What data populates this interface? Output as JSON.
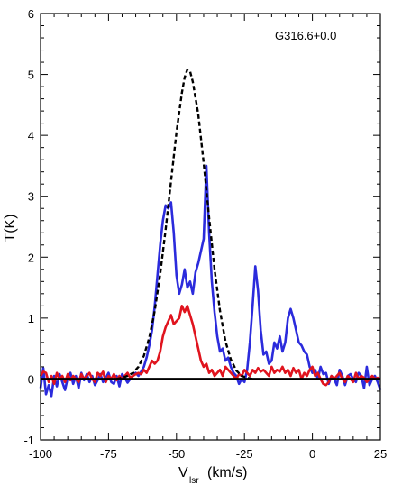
{
  "chart_data": {
    "type": "line",
    "annotation": "G316.6+0.0",
    "xlabel_main": "V",
    "xlabel_sub": "lsr",
    "xlabel_unit": "(km/s)",
    "ylabel": "T(K)",
    "xlim": [
      -100,
      25
    ],
    "ylim": [
      -1,
      6
    ],
    "xticks": [
      -100,
      -75,
      -50,
      -25,
      0,
      25
    ],
    "xtick_labels": [
      "-100",
      "-75",
      "-50",
      "-25",
      "0",
      "25"
    ],
    "yticks": [
      -1,
      0,
      1,
      2,
      3,
      4,
      5,
      6
    ],
    "ytick_labels": [
      "-1",
      "0",
      "1",
      "2",
      "3",
      "4",
      "5",
      "6"
    ],
    "grid": false,
    "series": [
      {
        "color": "#2b2bdc",
        "style": "solid",
        "x": [
          -100,
          -99,
          -98,
          -97,
          -96,
          -95,
          -94,
          -93,
          -92,
          -91,
          -90,
          -89,
          -88,
          -87,
          -86,
          -85,
          -84,
          -83,
          -82,
          -81,
          -80,
          -79,
          -78,
          -77,
          -76,
          -75,
          -74,
          -73,
          -72,
          -71,
          -70,
          -69,
          -68,
          -67,
          -66,
          -65,
          -64,
          -63,
          -62,
          -61,
          -60,
          -59,
          -58,
          -57,
          -56,
          -55,
          -54,
          -53,
          -52,
          -51,
          -50,
          -49,
          -48,
          -47,
          -46,
          -45,
          -44,
          -43,
          -42,
          -41,
          -40,
          -39,
          -38,
          -37,
          -36,
          -35,
          -34,
          -33,
          -32,
          -31,
          -30,
          -29,
          -28,
          -27,
          -26,
          -25,
          -24,
          -23,
          -22,
          -21,
          -20,
          -19,
          -18,
          -17,
          -16,
          -15,
          -14,
          -13,
          -12,
          -11,
          -10,
          -9,
          -8,
          -7,
          -6,
          -5,
          -4,
          -3,
          -2,
          -1,
          0,
          1,
          2,
          3,
          4,
          5,
          6,
          7,
          8,
          9,
          10,
          11,
          12,
          13,
          14,
          15,
          16,
          17,
          18,
          19,
          20,
          21,
          22,
          23,
          24,
          25
        ],
        "y": [
          -0.15,
          0.18,
          -0.25,
          -0.1,
          -0.28,
          0.05,
          -0.12,
          0.08,
          -0.05,
          -0.18,
          0.02,
          0.1,
          -0.08,
          0.05,
          -0.15,
          0.1,
          -0.02,
          0.08,
          -0.05,
          0.05,
          -0.1,
          -0.02,
          0.08,
          -0.05,
          0.02,
          0.1,
          -0.05,
          -0.08,
          0.05,
          -0.12,
          0.08,
          0.02,
          -0.06,
          0.0,
          0.05,
          0.1,
          0.05,
          0.12,
          0.2,
          0.35,
          0.55,
          0.8,
          1.2,
          1.7,
          2.2,
          2.6,
          2.85,
          2.8,
          2.9,
          2.4,
          1.7,
          1.4,
          1.55,
          1.8,
          1.5,
          1.6,
          1.4,
          1.75,
          1.9,
          2.1,
          2.3,
          3.5,
          2.4,
          1.6,
          1.1,
          0.7,
          0.45,
          0.5,
          0.3,
          0.35,
          0.2,
          0.1,
          0.05,
          -0.08,
          0.0,
          -0.05,
          0.15,
          0.6,
          1.2,
          1.85,
          1.45,
          0.8,
          0.4,
          0.45,
          0.25,
          0.3,
          0.6,
          0.5,
          0.7,
          0.45,
          0.6,
          1.0,
          1.15,
          1.0,
          0.8,
          0.6,
          0.55,
          0.45,
          0.4,
          0.2,
          0.1,
          0.15,
          0.0,
          0.2,
          0.08,
          0.1,
          -0.08,
          0.05,
          0.0,
          -0.1,
          0.15,
          0.05,
          -0.1,
          0.05,
          0.08,
          0.0,
          -0.05,
          0.1,
          0.05,
          -0.15,
          0.2,
          -0.1,
          0.0,
          0.05,
          -0.05,
          -0.18
        ]
      },
      {
        "color": "#e0141e",
        "style": "solid",
        "x": [
          -100,
          -99,
          -98,
          -97,
          -96,
          -95,
          -94,
          -93,
          -92,
          -91,
          -90,
          -89,
          -88,
          -87,
          -86,
          -85,
          -84,
          -83,
          -82,
          -81,
          -80,
          -79,
          -78,
          -77,
          -76,
          -75,
          -74,
          -73,
          -72,
          -71,
          -70,
          -69,
          -68,
          -67,
          -66,
          -65,
          -64,
          -63,
          -62,
          -61,
          -60,
          -59,
          -58,
          -57,
          -56,
          -55,
          -54,
          -53,
          -52,
          -51,
          -50,
          -49,
          -48,
          -47,
          -46,
          -45,
          -44,
          -43,
          -42,
          -41,
          -40,
          -39,
          -38,
          -37,
          -36,
          -35,
          -34,
          -33,
          -32,
          -31,
          -30,
          -29,
          -28,
          -27,
          -26,
          -25,
          -24,
          -23,
          -22,
          -21,
          -20,
          -19,
          -18,
          -17,
          -16,
          -15,
          -14,
          -13,
          -12,
          -11,
          -10,
          -9,
          -8,
          -7,
          -6,
          -5,
          -4,
          -3,
          -2,
          -1,
          0,
          1,
          2,
          3,
          4,
          5,
          6,
          7,
          8,
          9,
          10,
          11,
          12,
          13,
          14,
          15,
          16,
          17,
          18,
          19,
          20,
          21,
          22,
          23,
          24,
          25
        ],
        "y": [
          0.05,
          0.12,
          0.1,
          -0.05,
          0.05,
          -0.08,
          0.1,
          0.0,
          0.05,
          -0.05,
          0.08,
          -0.02,
          0.05,
          0.0,
          -0.05,
          0.08,
          0.0,
          0.05,
          0.1,
          0.0,
          -0.05,
          0.1,
          0.05,
          0.12,
          -0.05,
          0.05,
          0.0,
          0.08,
          -0.02,
          0.05,
          0.0,
          0.05,
          0.1,
          0.02,
          0.05,
          0.08,
          0.1,
          0.08,
          0.15,
          0.1,
          0.2,
          0.3,
          0.25,
          0.3,
          0.45,
          0.7,
          0.85,
          0.95,
          1.05,
          0.9,
          0.95,
          1.0,
          1.2,
          1.1,
          1.2,
          1.05,
          0.9,
          0.7,
          0.5,
          0.3,
          0.2,
          0.25,
          0.1,
          0.15,
          0.05,
          0.1,
          0.15,
          0.05,
          0.2,
          0.15,
          0.1,
          0.05,
          0.0,
          0.08,
          0.05,
          0.15,
          0.1,
          0.05,
          0.15,
          0.1,
          0.18,
          0.12,
          0.15,
          0.1,
          0.05,
          0.2,
          0.1,
          0.15,
          0.12,
          0.2,
          0.1,
          0.15,
          0.05,
          0.18,
          0.1,
          0.15,
          0.0,
          0.1,
          0.05,
          0.15,
          0.2,
          0.05,
          0.1,
          0.0,
          -0.08,
          -0.1,
          -0.05,
          0.05,
          0.0,
          0.05,
          0.1,
          0.0,
          -0.05,
          0.05,
          0.0,
          -0.05,
          0.1,
          0.0,
          0.05,
          0.02,
          -0.05,
          0.0,
          0.05,
          0.0,
          0.02,
          0.0
        ]
      },
      {
        "color": "#000000",
        "style": "dashed",
        "x": [
          -72,
          -70,
          -68,
          -66,
          -64,
          -62,
          -60,
          -58,
          -56,
          -54,
          -52,
          -50,
          -48,
          -47,
          -46,
          -45,
          -44,
          -42,
          -40,
          -38,
          -36,
          -34,
          -32,
          -30,
          -28,
          -26,
          -24,
          -22
        ],
        "y": [
          0.0,
          0.02,
          0.05,
          0.1,
          0.2,
          0.38,
          0.68,
          1.12,
          1.72,
          2.45,
          3.25,
          4.05,
          4.7,
          4.95,
          5.08,
          5.05,
          4.88,
          4.35,
          3.55,
          2.65,
          1.8,
          1.12,
          0.62,
          0.32,
          0.14,
          0.05,
          0.02,
          0.0
        ]
      },
      {
        "color": "#000000",
        "style": "baseline",
        "x": [
          -100,
          25
        ],
        "y": [
          0,
          0
        ]
      }
    ]
  }
}
